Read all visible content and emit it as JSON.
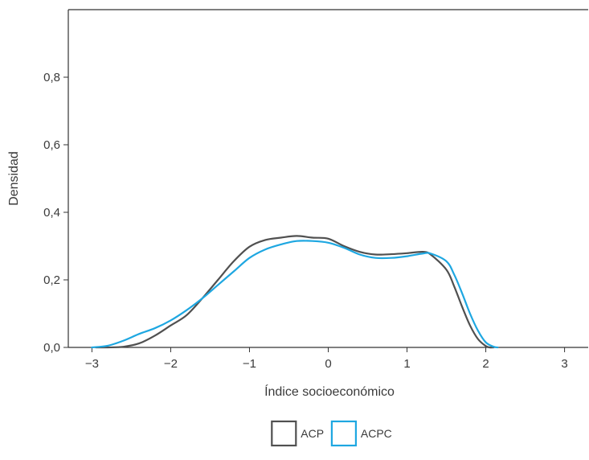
{
  "chart_data": {
    "type": "line",
    "title": "",
    "xlabel": "Índice socioeconómico",
    "ylabel": "Densidad",
    "xlim": [
      -3.3,
      3.3
    ],
    "ylim": [
      0,
      1.0
    ],
    "x_ticks": [
      -3,
      -2,
      -1,
      0,
      1,
      2,
      3
    ],
    "x_tick_labels": [
      "−3",
      "−2",
      "−1",
      "0",
      "1",
      "2",
      "3"
    ],
    "y_ticks": [
      0,
      0.2,
      0.4,
      0.6,
      0.8
    ],
    "y_tick_labels": [
      "0,0",
      "0,2",
      "0,4",
      "0,6",
      "0,8"
    ],
    "grid": false,
    "legend_position": "bottom",
    "series": [
      {
        "name": "ACP",
        "color": "#505050",
        "x": [
          -2.95,
          -2.8,
          -2.6,
          -2.4,
          -2.2,
          -2.0,
          -1.8,
          -1.6,
          -1.4,
          -1.2,
          -1.0,
          -0.8,
          -0.6,
          -0.4,
          -0.2,
          0.0,
          0.2,
          0.4,
          0.6,
          0.8,
          1.0,
          1.2,
          1.3,
          1.5,
          1.6,
          1.7,
          1.8,
          1.9,
          2.0,
          2.05,
          2.1
        ],
        "y": [
          0.0,
          0.0,
          0.002,
          0.012,
          0.035,
          0.065,
          0.095,
          0.145,
          0.2,
          0.255,
          0.298,
          0.318,
          0.325,
          0.33,
          0.325,
          0.322,
          0.3,
          0.283,
          0.275,
          0.276,
          0.279,
          0.283,
          0.275,
          0.23,
          0.18,
          0.12,
          0.065,
          0.025,
          0.004,
          0.0,
          0.0
        ]
      },
      {
        "name": "ACPC",
        "color": "#1ea7e1",
        "x": [
          -3.0,
          -2.8,
          -2.6,
          -2.4,
          -2.2,
          -2.0,
          -1.8,
          -1.6,
          -1.4,
          -1.2,
          -1.0,
          -0.8,
          -0.6,
          -0.4,
          -0.2,
          0.0,
          0.2,
          0.4,
          0.6,
          0.8,
          1.0,
          1.2,
          1.3,
          1.5,
          1.6,
          1.7,
          1.8,
          1.9,
          2.0,
          2.1,
          2.15
        ],
        "y": [
          0.0,
          0.005,
          0.02,
          0.04,
          0.057,
          0.08,
          0.11,
          0.145,
          0.185,
          0.225,
          0.265,
          0.29,
          0.305,
          0.315,
          0.315,
          0.31,
          0.295,
          0.275,
          0.265,
          0.265,
          0.27,
          0.278,
          0.278,
          0.255,
          0.215,
          0.16,
          0.1,
          0.05,
          0.015,
          0.002,
          0.0
        ]
      }
    ]
  }
}
